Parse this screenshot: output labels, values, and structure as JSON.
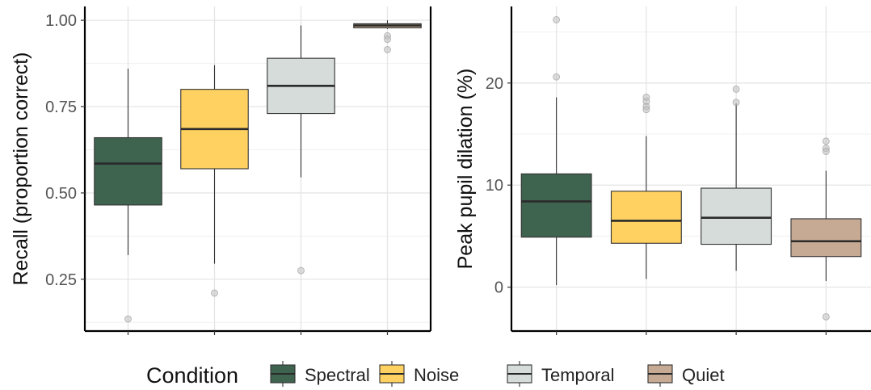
{
  "legend": {
    "title": "Condition",
    "entries": [
      {
        "label": "Spectral",
        "color": "#3e6450"
      },
      {
        "label": "Noise",
        "color": "#ffd160"
      },
      {
        "label": "Temporal",
        "color": "#d6dcd9"
      },
      {
        "label": "Quiet",
        "color": "#c7aa93"
      }
    ]
  },
  "chart_data": [
    {
      "type": "box",
      "ylabel": "Recall (proportion correct)",
      "ylim": [
        0.1,
        1.04
      ],
      "yticks": [
        0.25,
        0.5,
        0.75,
        1.0
      ],
      "ytick_labels": [
        "0.25",
        "0.50",
        "0.75",
        "1.00"
      ],
      "grid": true,
      "categories": [
        "Spectral",
        "Noise",
        "Temporal",
        "Quiet"
      ],
      "boxes": [
        {
          "category": "Spectral",
          "min": 0.32,
          "q1": 0.465,
          "median": 0.585,
          "q3": 0.66,
          "max": 0.86,
          "outliers": [
            0.135
          ]
        },
        {
          "category": "Noise",
          "min": 0.295,
          "q1": 0.57,
          "median": 0.685,
          "q3": 0.8,
          "max": 0.87,
          "outliers": [
            0.21
          ]
        },
        {
          "category": "Temporal",
          "min": 0.545,
          "q1": 0.73,
          "median": 0.81,
          "q3": 0.89,
          "max": 0.985,
          "outliers": [
            0.275
          ]
        },
        {
          "category": "Quiet",
          "min": 0.975,
          "q1": 0.978,
          "median": 0.985,
          "q3": 0.99,
          "max": 1.0,
          "outliers": [
            0.955,
            0.945,
            0.915
          ]
        }
      ]
    },
    {
      "type": "box",
      "ylabel": "Peak pupil dilation (%)",
      "ylim": [
        -4.3,
        27.5
      ],
      "yticks": [
        0,
        10,
        20
      ],
      "ytick_labels": [
        "0",
        "10",
        "20"
      ],
      "grid": true,
      "categories": [
        "Spectral",
        "Noise",
        "Temporal",
        "Quiet"
      ],
      "boxes": [
        {
          "category": "Spectral",
          "min": 0.2,
          "q1": 4.9,
          "median": 8.4,
          "q3": 11.1,
          "max": 18.6,
          "outliers": [
            26.2,
            20.6
          ]
        },
        {
          "category": "Noise",
          "min": 0.8,
          "q1": 4.3,
          "median": 6.5,
          "q3": 9.4,
          "max": 14.8,
          "outliers": [
            18.6,
            18.2,
            17.7,
            17.4
          ]
        },
        {
          "category": "Temporal",
          "min": 1.6,
          "q1": 4.2,
          "median": 6.8,
          "q3": 9.7,
          "max": 18.0,
          "outliers": [
            19.4,
            18.1
          ]
        },
        {
          "category": "Quiet",
          "min": 0.6,
          "q1": 3.0,
          "median": 4.5,
          "q3": 6.7,
          "max": 11.4,
          "outliers": [
            14.3,
            13.6,
            13.3,
            -2.9
          ]
        }
      ]
    }
  ]
}
